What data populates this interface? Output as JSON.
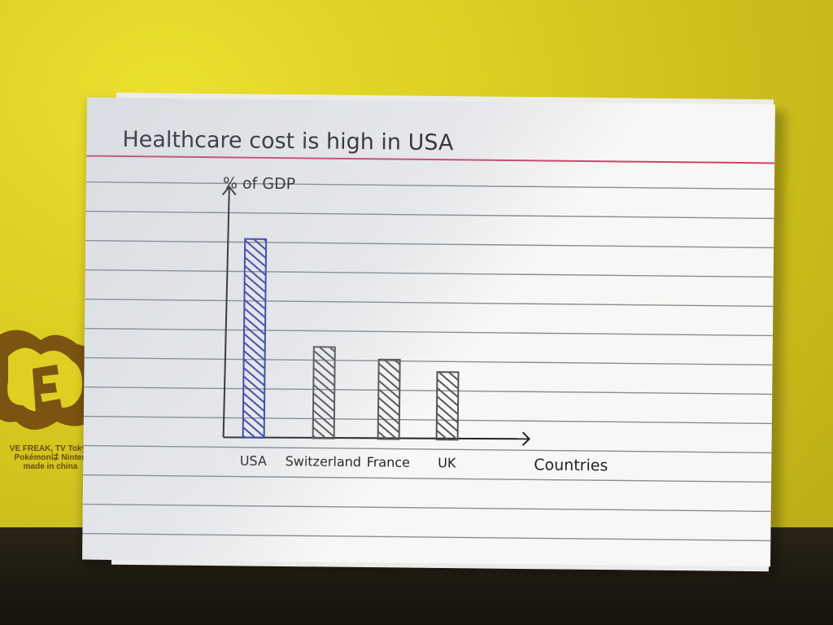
{
  "chart_data": {
    "type": "bar",
    "title": "Healthcare cost is high in USA",
    "ylabel": "% of GDP",
    "xlabel": "Countries",
    "categories": [
      "USA",
      "Switzerland",
      "France",
      "UK"
    ],
    "values": [
      100,
      46,
      40,
      34
    ],
    "highlight": "USA",
    "colors": {
      "highlight": "#2f3fa8",
      "other": "#555555",
      "title_rule": "#d1416b",
      "ink": "#222222"
    },
    "ylim": [
      0,
      100
    ],
    "grid": false,
    "legend": "none"
  },
  "background": {
    "brand_lines": [
      "VE FREAK, TV Tokyo",
      "Pokémonは Ninten",
      "made in china"
    ]
  }
}
